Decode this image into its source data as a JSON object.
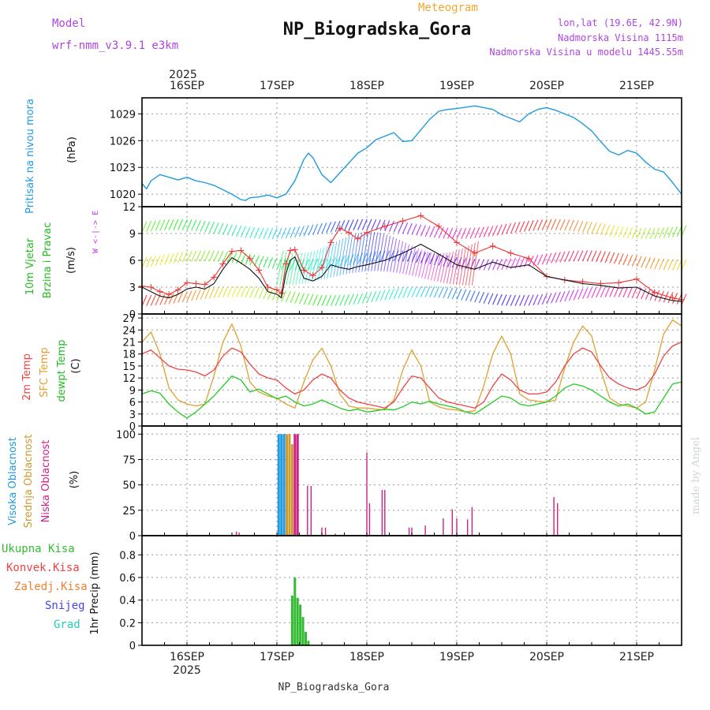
{
  "header": {
    "top_label": "Meteogram",
    "title": "NP_Biogradska_Gora",
    "model_label": "Model",
    "model_value": "wrf-nmm_v3.9.1 e3km",
    "lonlat": "lon,lat (19.6E, 42.9N)",
    "altitude": "Nadmorska Visina 1115m",
    "model_altitude": "Nadmorska Visina u modelu 1445.55m",
    "footer_station": "NP_Biogradska_Gora",
    "credit": "made by Angel"
  },
  "colors": {
    "pressure": "#1e9be0",
    "wind_green": "#22bb22",
    "temp2m": "#ee4444",
    "sfc": "#e0a030",
    "dewpt": "#22cc22",
    "high_cloud": "#1e9be0",
    "mid_cloud": "#cc9933",
    "low_cloud": "#cc2288",
    "precip": "#33bb33",
    "purple": "#b044e0",
    "orange_label": "#f0a830"
  },
  "chart_data": {
    "type": "meteogram",
    "year": "2025",
    "days": [
      "16SEP",
      "17SEP",
      "18SEP",
      "19SEP",
      "20SEP",
      "21SEP"
    ],
    "x_range_days": [
      -0.5,
      5.5
    ],
    "panels": [
      {
        "id": "pressure",
        "type": "line",
        "ylabel": "Pritisak na nivou mora",
        "unit": "(hPa)",
        "yticks": [
          1020,
          1023,
          1026,
          1029
        ],
        "ylim": [
          1018.6,
          1030.8
        ],
        "x_days": [
          -0.5,
          -0.45,
          -0.4,
          -0.3,
          -0.2,
          -0.1,
          0,
          0.1,
          0.2,
          0.3,
          0.4,
          0.5,
          0.6,
          0.65,
          0.7,
          0.8,
          0.9,
          1.0,
          1.1,
          1.2,
          1.3,
          1.35,
          1.4,
          1.5,
          1.6,
          1.7,
          1.8,
          1.9,
          2.0,
          2.1,
          2.2,
          2.3,
          2.4,
          2.5,
          2.6,
          2.7,
          2.8,
          2.9,
          3.0,
          3.2,
          3.4,
          3.5,
          3.6,
          3.7,
          3.8,
          3.9,
          4.0,
          4.1,
          4.2,
          4.3,
          4.4,
          4.5,
          4.6,
          4.7,
          4.8,
          4.9,
          5.0,
          5.1,
          5.2,
          5.3,
          5.4,
          5.5
        ],
        "values": [
          1021.2,
          1020.6,
          1021.5,
          1022.2,
          1021.9,
          1021.6,
          1021.9,
          1021.5,
          1021.3,
          1021.0,
          1020.5,
          1020.0,
          1019.4,
          1019.3,
          1019.6,
          1019.7,
          1019.9,
          1019.6,
          1020.0,
          1021.5,
          1023.9,
          1024.6,
          1024.1,
          1022.2,
          1021.3,
          1022.4,
          1023.5,
          1024.6,
          1025.2,
          1026.1,
          1026.5,
          1026.9,
          1025.9,
          1026.0,
          1027.2,
          1028.4,
          1029.3,
          1029.5,
          1029.6,
          1029.9,
          1029.5,
          1028.9,
          1028.5,
          1028.1,
          1029.0,
          1029.5,
          1029.7,
          1029.4,
          1029.0,
          1028.6,
          1027.9,
          1027.1,
          1025.9,
          1024.8,
          1024.4,
          1024.9,
          1024.6,
          1023.6,
          1022.8,
          1022.5,
          1021.3,
          1020.0
        ]
      },
      {
        "id": "wind",
        "type": "line",
        "ylabel": "10m Vjetar",
        "ylabel2": "Brzina i Pravac",
        "unit": "(m/s)",
        "compass": "W <-|-> E",
        "yticks": [
          0,
          3,
          6,
          9,
          12
        ],
        "ylim": [
          0,
          12
        ],
        "x_days": [
          -0.5,
          -0.4,
          -0.3,
          -0.2,
          -0.1,
          0.0,
          0.1,
          0.2,
          0.3,
          0.4,
          0.5,
          0.6,
          0.7,
          0.8,
          0.9,
          1.0,
          1.05,
          1.1,
          1.15,
          1.2,
          1.3,
          1.4,
          1.5,
          1.6,
          1.7,
          1.8,
          1.9,
          2.0,
          2.2,
          2.4,
          2.6,
          2.8,
          3.0,
          3.2,
          3.4,
          3.6,
          3.8,
          4.0,
          4.2,
          4.4,
          4.6,
          4.8,
          5.0,
          5.2,
          5.4,
          5.5
        ],
        "series": [
          {
            "name": "wind speed",
            "values": [
              3.0,
              2.5,
              2.0,
              1.8,
              2.2,
              2.8,
              3.0,
              2.8,
              3.4,
              5.0,
              6.3,
              5.7,
              5.0,
              4.0,
              2.5,
              2.2,
              1.8,
              4.5,
              6.0,
              6.4,
              4.0,
              3.7,
              4.2,
              5.5,
              5.2,
              5.0,
              5.3,
              5.5,
              6.0,
              6.8,
              7.8,
              6.7,
              5.5,
              5.0,
              5.8,
              5.2,
              5.5,
              4.2,
              3.8,
              3.4,
              3.2,
              2.9,
              3.0,
              2.0,
              1.5,
              1.4
            ]
          },
          {
            "name": "gust",
            "values": [
              3.1,
              3.0,
              2.5,
              2.2,
              2.7,
              3.5,
              3.4,
              3.3,
              4.1,
              5.6,
              7.0,
              7.1,
              6.2,
              4.9,
              3.0,
              2.7,
              2.3,
              5.6,
              7.1,
              7.2,
              4.9,
              4.3,
              5.2,
              8.0,
              9.6,
              9.1,
              8.4,
              9.1,
              9.8,
              10.4,
              11.0,
              9.8,
              8.0,
              6.8,
              7.6,
              6.8,
              6.2,
              4.2,
              3.8,
              3.6,
              3.4,
              3.5,
              3.9,
              2.4,
              1.8,
              1.6
            ]
          }
        ]
      },
      {
        "id": "temp",
        "type": "line",
        "ylabel": "2m Temp",
        "ylabel2": "SFC Temp",
        "ylabel3": "dewpt Temp",
        "unit": "(C)",
        "yticks": [
          0,
          3,
          6,
          9,
          12,
          15,
          18,
          21,
          24,
          27
        ],
        "ylim": [
          0,
          28
        ],
        "x_days": [
          -0.5,
          -0.4,
          -0.3,
          -0.2,
          -0.1,
          0.0,
          0.1,
          0.2,
          0.3,
          0.4,
          0.5,
          0.6,
          0.7,
          0.8,
          0.9,
          1.0,
          1.1,
          1.2,
          1.3,
          1.4,
          1.5,
          1.6,
          1.7,
          1.8,
          1.9,
          2.0,
          2.1,
          2.2,
          2.3,
          2.4,
          2.5,
          2.6,
          2.7,
          2.8,
          2.9,
          3.0,
          3.1,
          3.2,
          3.3,
          3.4,
          3.5,
          3.6,
          3.7,
          3.8,
          3.9,
          4.0,
          4.1,
          4.2,
          4.3,
          4.4,
          4.5,
          4.6,
          4.7,
          4.8,
          4.9,
          5.0,
          5.1,
          5.2,
          5.3,
          5.4,
          5.5
        ],
        "series": [
          {
            "name": "2m Temp",
            "values": [
              18.0,
              19.0,
              17.0,
              15.0,
              14.2,
              14.0,
              13.5,
              12.5,
              14.0,
              17.5,
              19.5,
              18.5,
              15.5,
              13.0,
              12.0,
              11.5,
              9.5,
              8.0,
              9.0,
              11.5,
              13.0,
              12.0,
              9.0,
              7.0,
              6.0,
              5.5,
              5.0,
              4.5,
              6.0,
              9.5,
              12.5,
              12.0,
              9.5,
              7.0,
              6.0,
              5.5,
              5.0,
              4.5,
              6.0,
              10.0,
              13.0,
              11.5,
              9.0,
              8.0,
              8.0,
              8.5,
              11.0,
              15.0,
              18.0,
              19.5,
              18.5,
              15.0,
              12.0,
              10.5,
              9.5,
              9.0,
              10.0,
              13.0,
              17.5,
              20.0,
              21.0
            ]
          },
          {
            "name": "SFC Temp",
            "values": [
              21.0,
              23.5,
              18.0,
              9.5,
              6.5,
              5.5,
              5.0,
              5.5,
              12.5,
              21.0,
              25.5,
              20.0,
              11.0,
              8.5,
              7.5,
              7.0,
              5.5,
              4.5,
              11.0,
              16.5,
              19.5,
              15.0,
              8.0,
              5.0,
              4.5,
              4.5,
              4.2,
              4.0,
              6.5,
              14.0,
              19.0,
              15.0,
              6.0,
              4.8,
              4.2,
              4.0,
              3.5,
              3.8,
              10.0,
              18.0,
              22.5,
              18.0,
              8.0,
              6.5,
              6.2,
              6.0,
              6.5,
              14.5,
              21.0,
              25.0,
              22.5,
              14.0,
              7.0,
              5.5,
              5.0,
              4.5,
              6.0,
              14.0,
              23.0,
              26.5,
              25.0
            ]
          },
          {
            "name": "dewpt Temp",
            "values": [
              8.0,
              8.8,
              8.2,
              5.5,
              3.5,
              2.0,
              3.5,
              5.5,
              7.5,
              10.0,
              12.5,
              11.5,
              8.5,
              9.2,
              8.0,
              6.8,
              7.5,
              6.0,
              5.0,
              5.5,
              6.5,
              5.5,
              4.5,
              3.8,
              4.2,
              3.5,
              3.8,
              4.2,
              4.0,
              4.8,
              6.0,
              5.5,
              6.2,
              5.5,
              5.0,
              4.5,
              3.5,
              3.0,
              4.5,
              6.0,
              7.5,
              7.0,
              5.5,
              5.0,
              5.5,
              6.0,
              7.5,
              9.5,
              10.5,
              10.0,
              9.0,
              7.5,
              6.0,
              5.0,
              5.5,
              4.5,
              3.0,
              3.5,
              7.0,
              10.5,
              11.0
            ]
          }
        ]
      },
      {
        "id": "cloud",
        "type": "bar",
        "ylabel": "Visoka Oblacnost",
        "ylabel2": "Srednja Oblacnost",
        "ylabel3": "Niska Oblacnost",
        "unit": "(%)",
        "yticks": [
          0,
          25,
          50,
          75,
          100
        ],
        "ylim": [
          0,
          108
        ],
        "bars": [
          {
            "layer": "high",
            "day": 1.02,
            "value": 100
          },
          {
            "layer": "high",
            "day": 1.05,
            "value": 100
          },
          {
            "layer": "high",
            "day": 1.08,
            "value": 100
          },
          {
            "layer": "mid",
            "day": 1.11,
            "value": 100
          },
          {
            "layer": "mid",
            "day": 1.14,
            "value": 100
          },
          {
            "layer": "mid",
            "day": 1.17,
            "value": 90
          },
          {
            "layer": "low",
            "day": 1.2,
            "value": 100
          },
          {
            "layer": "low",
            "day": 1.23,
            "value": 100
          },
          {
            "layer": "low",
            "day": 0.55,
            "value": 4
          },
          {
            "layer": "low",
            "day": 0.58,
            "value": 3
          },
          {
            "layer": "low",
            "day": 1.34,
            "value": 49
          },
          {
            "layer": "low",
            "day": 1.38,
            "value": 49
          },
          {
            "layer": "low",
            "day": 1.5,
            "value": 8
          },
          {
            "layer": "low",
            "day": 1.54,
            "value": 8
          },
          {
            "layer": "low",
            "day": 1.65,
            "value": 2
          },
          {
            "layer": "low",
            "day": 2.0,
            "value": 82
          },
          {
            "layer": "low",
            "day": 2.03,
            "value": 32
          },
          {
            "layer": "low",
            "day": 2.17,
            "value": 45
          },
          {
            "layer": "low",
            "day": 2.2,
            "value": 45
          },
          {
            "layer": "low",
            "day": 2.47,
            "value": 8
          },
          {
            "layer": "low",
            "day": 2.5,
            "value": 8
          },
          {
            "layer": "low",
            "day": 2.65,
            "value": 10
          },
          {
            "layer": "low",
            "day": 2.85,
            "value": 17
          },
          {
            "layer": "low",
            "day": 2.95,
            "value": 26
          },
          {
            "layer": "low",
            "day": 3.0,
            "value": 17
          },
          {
            "layer": "low",
            "day": 3.12,
            "value": 16
          },
          {
            "layer": "low",
            "day": 3.17,
            "value": 28
          },
          {
            "layer": "low",
            "day": 4.08,
            "value": 38
          },
          {
            "layer": "low",
            "day": 4.12,
            "value": 32
          }
        ]
      },
      {
        "id": "precip",
        "type": "bar",
        "ylabel": "1hr Precip (mm)",
        "yticks": [
          0,
          0.2,
          0.4,
          0.6,
          0.8
        ],
        "ylim": [
          0,
          0.97
        ],
        "legend": [
          "Ukupna Kisa",
          "Konvek.Kisa",
          "Zaledj.Kisa",
          "Snijeg",
          "Grad"
        ],
        "bars": [
          {
            "day": 1.17,
            "value": 0.44
          },
          {
            "day": 1.2,
            "value": 0.6
          },
          {
            "day": 1.23,
            "value": 0.42
          },
          {
            "day": 1.26,
            "value": 0.36
          },
          {
            "day": 1.29,
            "value": 0.25
          },
          {
            "day": 1.32,
            "value": 0.12
          },
          {
            "day": 1.35,
            "value": 0.04
          }
        ]
      }
    ]
  }
}
